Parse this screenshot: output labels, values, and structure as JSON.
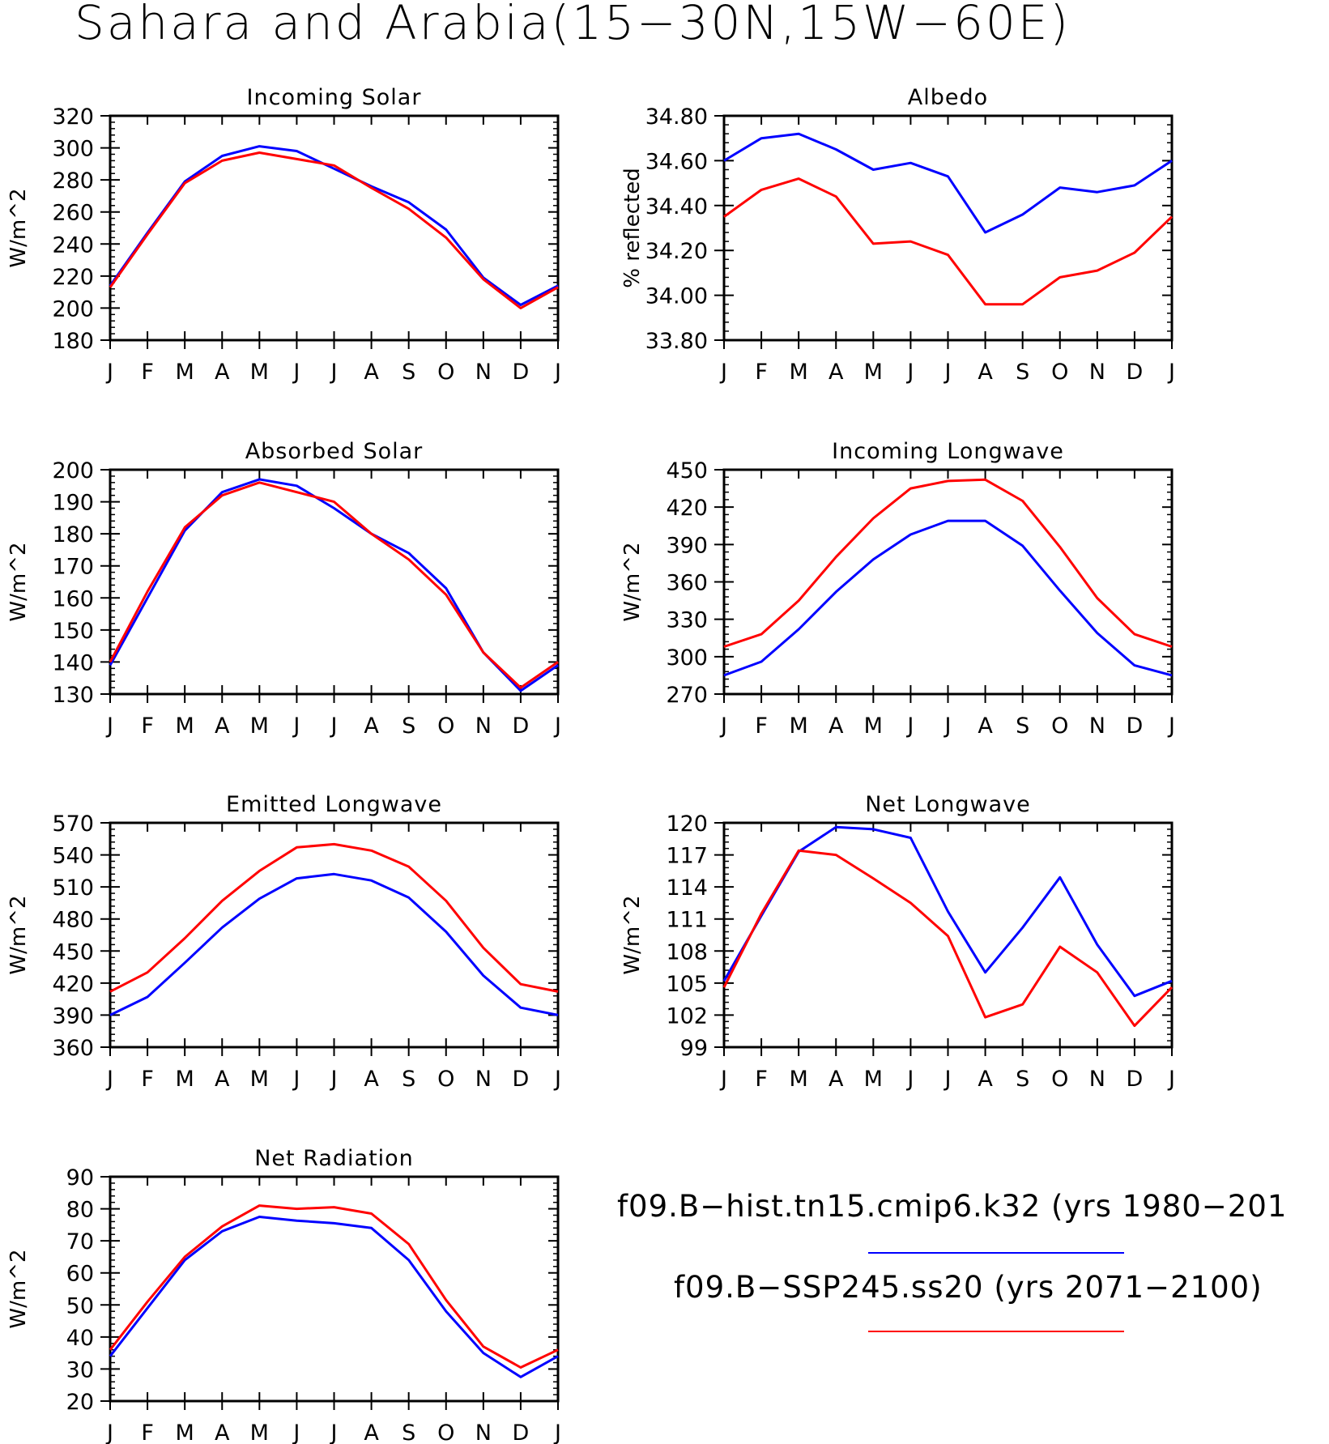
{
  "title": "Sahara and Arabia(15−30N,15W−60E)",
  "months": [
    "J",
    "F",
    "M",
    "A",
    "M",
    "J",
    "J",
    "A",
    "S",
    "O",
    "N",
    "D",
    "J"
  ],
  "colors": {
    "hist": "#0000ff",
    "ssp": "#ff0000"
  },
  "legend": {
    "hist_label": "f09.B−hist.tn15.cmip6.k32 (yrs 1980−201",
    "ssp_label": "f09.B−SSP245.ss20 (yrs 2071−2100)"
  },
  "chart_data": [
    {
      "type": "line",
      "title": "Incoming Solar",
      "ylabel": "W/m^2",
      "ylim": [
        180,
        320
      ],
      "yticks": [
        "180",
        "200",
        "220",
        "240",
        "260",
        "280",
        "300",
        "320"
      ],
      "series": [
        {
          "name": "f09.B−hist.tn15.cmip6.k32 (yrs 1980−201",
          "values": [
            214,
            247,
            279,
            295,
            301,
            298,
            287,
            276,
            266,
            249,
            219,
            202,
            214
          ]
        },
        {
          "name": "f09.B−SSP245.ss20 (yrs 2071−2100)",
          "values": [
            213,
            246,
            278,
            292,
            297,
            293,
            289,
            275,
            262,
            244,
            218,
            200,
            213
          ]
        }
      ]
    },
    {
      "type": "line",
      "title": "Albedo",
      "ylabel": "% reflected",
      "ylim": [
        33.8,
        34.8
      ],
      "yticks": [
        "33.80",
        "34.00",
        "34.20",
        "34.40",
        "34.60",
        "34.80"
      ],
      "series": [
        {
          "name": "f09.B−hist.tn15.cmip6.k32 (yrs 1980−201",
          "values": [
            34.6,
            34.7,
            34.72,
            34.65,
            34.56,
            34.59,
            34.53,
            34.28,
            34.36,
            34.48,
            34.46,
            34.49,
            34.6
          ]
        },
        {
          "name": "f09.B−SSP245.ss20 (yrs 2071−2100)",
          "values": [
            34.35,
            34.47,
            34.52,
            34.44,
            34.23,
            34.24,
            34.18,
            33.96,
            33.96,
            34.08,
            34.11,
            34.19,
            34.35
          ]
        }
      ]
    },
    {
      "type": "line",
      "title": "Absorbed Solar",
      "ylabel": "W/m^2",
      "ylim": [
        130,
        200
      ],
      "yticks": [
        "130",
        "140",
        "150",
        "160",
        "170",
        "180",
        "190",
        "200"
      ],
      "series": [
        {
          "name": "f09.B−hist.tn15.cmip6.k32 (yrs 1980−201",
          "values": [
            139,
            160,
            181,
            193,
            197,
            195,
            188,
            180,
            174,
            163,
            143,
            131,
            139
          ]
        },
        {
          "name": "f09.B−SSP245.ss20 (yrs 2071−2100)",
          "values": [
            140,
            162,
            182,
            192,
            196,
            193,
            190,
            180,
            172,
            161,
            143,
            132,
            140
          ]
        }
      ]
    },
    {
      "type": "line",
      "title": "Incoming Longwave",
      "ylabel": "W/m^2",
      "ylim": [
        270,
        450
      ],
      "yticks": [
        "270",
        "300",
        "330",
        "360",
        "390",
        "420",
        "450"
      ],
      "series": [
        {
          "name": "f09.B−hist.tn15.cmip6.k32 (yrs 1980−201",
          "values": [
            285,
            296,
            322,
            352,
            378,
            398,
            409,
            409,
            389,
            353,
            319,
            293,
            285
          ]
        },
        {
          "name": "f09.B−SSP245.ss20 (yrs 2071−2100)",
          "values": [
            308,
            318,
            345,
            380,
            411,
            435,
            441,
            442,
            425,
            388,
            347,
            318,
            308
          ]
        }
      ]
    },
    {
      "type": "line",
      "title": "Emitted Longwave",
      "ylabel": "W/m^2",
      "ylim": [
        360,
        570
      ],
      "yticks": [
        "360",
        "390",
        "420",
        "450",
        "480",
        "510",
        "540",
        "570"
      ],
      "series": [
        {
          "name": "f09.B−hist.tn15.cmip6.k32 (yrs 1980−201",
          "values": [
            390,
            407,
            439,
            472,
            499,
            518,
            522,
            516,
            500,
            468,
            427,
            397,
            390
          ]
        },
        {
          "name": "f09.B−SSP245.ss20 (yrs 2071−2100)",
          "values": [
            412,
            430,
            462,
            497,
            525,
            547,
            550,
            544,
            529,
            497,
            453,
            419,
            412
          ]
        }
      ]
    },
    {
      "type": "line",
      "title": "Net Longwave",
      "ylabel": "W/m^2",
      "ylim": [
        99,
        120
      ],
      "yticks": [
        "99",
        "102",
        "105",
        "108",
        "111",
        "114",
        "117",
        "120"
      ],
      "series": [
        {
          "name": "f09.B−hist.tn15.cmip6.k32 (yrs 1980−201",
          "values": [
            105.2,
            111.3,
            117.3,
            119.6,
            119.4,
            118.6,
            111.7,
            106.0,
            110.2,
            114.9,
            108.6,
            103.8,
            105.2
          ]
        },
        {
          "name": "f09.B−SSP245.ss20 (yrs 2071−2100)",
          "values": [
            104.6,
            111.5,
            117.4,
            117.0,
            114.8,
            112.5,
            109.4,
            101.8,
            103.0,
            108.4,
            106.0,
            101.0,
            104.6
          ]
        }
      ]
    },
    {
      "type": "line",
      "title": "Net Radiation",
      "ylabel": "W/m^2",
      "ylim": [
        20,
        90
      ],
      "yticks": [
        "20",
        "30",
        "40",
        "50",
        "60",
        "70",
        "80",
        "90"
      ],
      "series": [
        {
          "name": "f09.B−hist.tn15.cmip6.k32 (yrs 1980−201",
          "values": [
            34,
            49,
            64,
            73,
            77.5,
            76.3,
            75.5,
            74,
            64,
            48,
            35,
            27.5,
            34
          ]
        },
        {
          "name": "f09.B−SSP245.ss20 (yrs 2071−2100)",
          "values": [
            36,
            51,
            65,
            74.5,
            81,
            80,
            80.5,
            78.5,
            69,
            51.5,
            37,
            30.5,
            36
          ]
        }
      ]
    }
  ]
}
